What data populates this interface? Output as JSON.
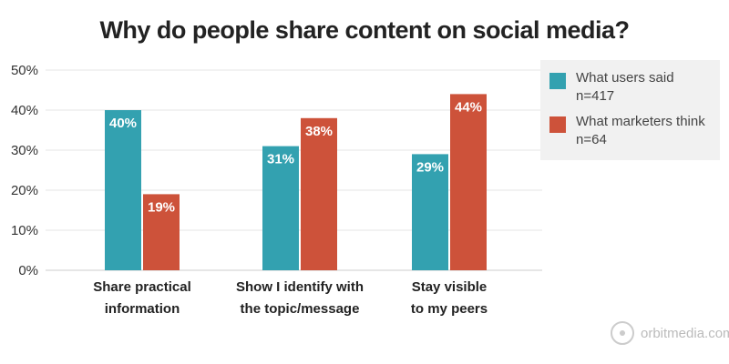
{
  "chart_data": {
    "type": "bar",
    "title": "Why do people share content on social media?",
    "categories": [
      "Share practical information",
      "Show I identify with the topic/message",
      "Stay visible to my peers"
    ],
    "category_lines": [
      [
        "Share practical",
        "information"
      ],
      [
        "Show I identify with",
        "the topic/message"
      ],
      [
        "Stay visible",
        "to my peers"
      ]
    ],
    "series": [
      {
        "name": "What users said",
        "sub": "n=417",
        "color": "#33a1b0",
        "values": [
          40,
          31,
          29
        ]
      },
      {
        "name": "What marketers think",
        "sub": "n=64",
        "color": "#cd523a",
        "values": [
          19,
          38,
          44
        ]
      }
    ],
    "yticks": [
      "0%",
      "10%",
      "20%",
      "30%",
      "40%",
      "50%"
    ],
    "ylim": [
      0,
      50
    ],
    "grid": true,
    "legend_position": "top-right",
    "xlabel": "",
    "ylabel": ""
  },
  "watermark": "orbitmedia.com"
}
